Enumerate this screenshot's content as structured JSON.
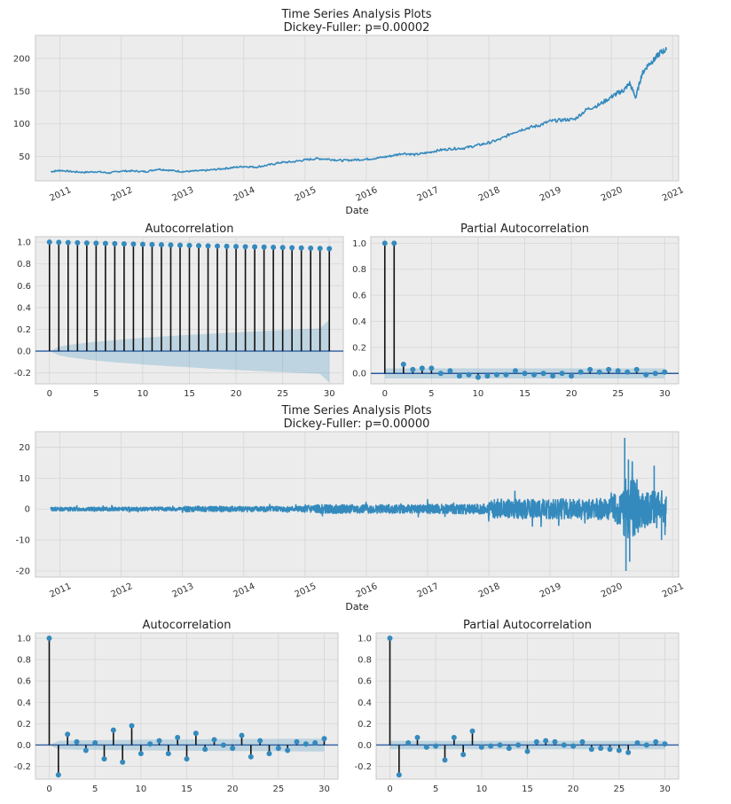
{
  "figure_1": {
    "title": "Time Series Analysis Plots",
    "subtitle": "Dickey-Fuller: p=0.00002"
  },
  "figure_2": {
    "title": "Time Series Analysis Plots",
    "subtitle": "Dickey-Fuller: p=0.00000"
  },
  "chart_data": [
    {
      "id": "ts1",
      "type": "line",
      "title": "Time Series Analysis Plots\nDickey-Fuller: p=0.00002",
      "xlabel": "Date",
      "ylabel": "",
      "x_ticks": [
        "2011",
        "2012",
        "2013",
        "2014",
        "2015",
        "2016",
        "2017",
        "2018",
        "2019",
        "2020",
        "2021"
      ],
      "y_ticks": [
        50,
        100,
        150,
        200
      ],
      "xlim": [
        2010.6,
        2021.1
      ],
      "ylim": [
        13,
        235
      ],
      "grid": true,
      "series": [
        {
          "name": "close",
          "x": [
            2010.85,
            2011.0,
            2011.2,
            2011.4,
            2011.6,
            2011.8,
            2012.0,
            2012.2,
            2012.4,
            2012.6,
            2012.8,
            2013.0,
            2013.2,
            2013.4,
            2013.6,
            2013.8,
            2014.0,
            2014.2,
            2014.4,
            2014.6,
            2014.8,
            2015.0,
            2015.2,
            2015.4,
            2015.6,
            2015.8,
            2016.0,
            2016.2,
            2016.4,
            2016.6,
            2016.8,
            2017.0,
            2017.2,
            2017.4,
            2017.6,
            2017.8,
            2018.0,
            2018.2,
            2018.4,
            2018.6,
            2018.8,
            2019.0,
            2019.2,
            2019.4,
            2019.6,
            2019.8,
            2020.0,
            2020.1,
            2020.2,
            2020.3,
            2020.4,
            2020.5,
            2020.6,
            2020.7,
            2020.8,
            2020.9
          ],
          "values": [
            27,
            29,
            27,
            26,
            27,
            25,
            28,
            28,
            27,
            31,
            29,
            27,
            28,
            29,
            31,
            33,
            35,
            34,
            37,
            41,
            42,
            45,
            47,
            46,
            44,
            45,
            46,
            48,
            51,
            55,
            53,
            56,
            60,
            62,
            63,
            67,
            71,
            77,
            87,
            93,
            97,
            104,
            106,
            107,
            122,
            129,
            141,
            147,
            151,
            162,
            140,
            176,
            190,
            198,
            209,
            213
          ]
        }
      ]
    },
    {
      "id": "acf1",
      "type": "stem",
      "title": "Autocorrelation",
      "xlabel": "",
      "ylabel": "",
      "x_ticks": [
        0,
        5,
        10,
        15,
        20,
        25,
        30
      ],
      "y_ticks": [
        -0.2,
        0.0,
        0.2,
        0.4,
        0.6,
        0.8,
        1.0
      ],
      "xlim": [
        -1.5,
        31.5
      ],
      "ylim": [
        -0.3,
        1.05
      ],
      "grid": true,
      "lags": [
        0,
        1,
        2,
        3,
        4,
        5,
        6,
        7,
        8,
        9,
        10,
        11,
        12,
        13,
        14,
        15,
        16,
        17,
        18,
        19,
        20,
        21,
        22,
        23,
        24,
        25,
        26,
        27,
        28,
        29,
        30
      ],
      "values": [
        1.0,
        0.998,
        0.996,
        0.994,
        0.992,
        0.99,
        0.988,
        0.986,
        0.984,
        0.982,
        0.98,
        0.978,
        0.976,
        0.974,
        0.972,
        0.97,
        0.968,
        0.966,
        0.964,
        0.962,
        0.96,
        0.958,
        0.956,
        0.954,
        0.952,
        0.95,
        0.948,
        0.946,
        0.944,
        0.942,
        0.94
      ],
      "conf_upper": [
        0.0,
        0.039,
        0.055,
        0.067,
        0.077,
        0.086,
        0.094,
        0.102,
        0.109,
        0.115,
        0.122,
        0.128,
        0.133,
        0.139,
        0.144,
        0.149,
        0.154,
        0.159,
        0.163,
        0.168,
        0.172,
        0.177,
        0.181,
        0.185,
        0.189,
        0.193,
        0.197,
        0.201,
        0.204,
        0.208,
        0.288
      ]
    },
    {
      "id": "pacf1",
      "type": "stem",
      "title": "Partial Autocorrelation",
      "xlabel": "",
      "ylabel": "",
      "x_ticks": [
        0,
        5,
        10,
        15,
        20,
        25,
        30
      ],
      "y_ticks": [
        0.0,
        0.2,
        0.4,
        0.6,
        0.8,
        1.0
      ],
      "xlim": [
        -1.5,
        31.5
      ],
      "ylim": [
        -0.08,
        1.05
      ],
      "grid": true,
      "lags": [
        0,
        1,
        2,
        3,
        4,
        5,
        6,
        7,
        8,
        9,
        10,
        11,
        12,
        13,
        14,
        15,
        16,
        17,
        18,
        19,
        20,
        21,
        22,
        23,
        24,
        25,
        26,
        27,
        28,
        29,
        30
      ],
      "values": [
        1.0,
        1.0,
        0.07,
        0.03,
        0.04,
        0.04,
        0.0,
        0.02,
        -0.02,
        -0.01,
        -0.03,
        -0.02,
        -0.01,
        -0.01,
        0.02,
        0.0,
        -0.01,
        0.0,
        -0.02,
        0.0,
        -0.02,
        0.01,
        0.03,
        0.01,
        0.03,
        0.02,
        0.01,
        0.03,
        -0.01,
        0.0,
        0.01
      ],
      "conf_upper": [
        0.039,
        0.039,
        0.039,
        0.039,
        0.039,
        0.039,
        0.039,
        0.039,
        0.039,
        0.039,
        0.039,
        0.039,
        0.039,
        0.039,
        0.039,
        0.039,
        0.039,
        0.039,
        0.039,
        0.039,
        0.039,
        0.039,
        0.039,
        0.039,
        0.039,
        0.039,
        0.039,
        0.039,
        0.039,
        0.039,
        0.039
      ]
    },
    {
      "id": "ts2",
      "type": "line",
      "title": "Time Series Analysis Plots\nDickey-Fuller: p=0.00000",
      "xlabel": "Date",
      "ylabel": "",
      "x_ticks": [
        "2011",
        "2012",
        "2013",
        "2014",
        "2015",
        "2016",
        "2017",
        "2018",
        "2019",
        "2020",
        "2021"
      ],
      "y_ticks": [
        -20,
        -10,
        0,
        10,
        20
      ],
      "xlim": [
        2010.6,
        2021.1
      ],
      "ylim": [
        -22,
        25
      ],
      "grid": true,
      "volatility": [
        {
          "from": 2010.85,
          "to": 2013.0,
          "amp": 0.6
        },
        {
          "from": 2013.0,
          "to": 2015.0,
          "amp": 0.9
        },
        {
          "from": 2015.0,
          "to": 2017.0,
          "amp": 1.4
        },
        {
          "from": 2017.0,
          "to": 2018.0,
          "amp": 1.6
        },
        {
          "from": 2018.0,
          "to": 2019.0,
          "amp": 3.2
        },
        {
          "from": 2019.0,
          "to": 2020.0,
          "amp": 3.4
        },
        {
          "from": 2020.0,
          "to": 2020.2,
          "amp": 5.0
        },
        {
          "from": 2020.2,
          "to": 2020.45,
          "amp": 10.0
        },
        {
          "from": 2020.45,
          "to": 2020.9,
          "amp": 6.0
        }
      ],
      "extremes": [
        {
          "x": 2020.22,
          "y": 23
        },
        {
          "x": 2020.24,
          "y": -20
        },
        {
          "x": 2020.28,
          "y": 16
        },
        {
          "x": 2020.3,
          "y": -17
        },
        {
          "x": 2020.7,
          "y": 14
        },
        {
          "x": 2020.82,
          "y": -10
        }
      ]
    },
    {
      "id": "acf2",
      "type": "stem",
      "title": "Autocorrelation",
      "xlabel": "",
      "ylabel": "",
      "x_ticks": [
        0,
        5,
        10,
        15,
        20,
        25,
        30
      ],
      "y_ticks": [
        -0.2,
        0.0,
        0.2,
        0.4,
        0.6,
        0.8,
        1.0
      ],
      "xlim": [
        -1.5,
        31.5
      ],
      "ylim": [
        -0.32,
        1.05
      ],
      "grid": true,
      "lags": [
        0,
        1,
        2,
        3,
        4,
        5,
        6,
        7,
        8,
        9,
        10,
        11,
        12,
        13,
        14,
        15,
        16,
        17,
        18,
        19,
        20,
        21,
        22,
        23,
        24,
        25,
        26,
        27,
        28,
        29,
        30
      ],
      "values": [
        1.0,
        -0.28,
        0.1,
        0.03,
        -0.05,
        0.02,
        -0.13,
        0.14,
        -0.16,
        0.18,
        -0.08,
        0.01,
        0.04,
        -0.08,
        0.07,
        -0.13,
        0.11,
        -0.04,
        0.05,
        0.0,
        -0.03,
        0.09,
        -0.11,
        0.04,
        -0.08,
        -0.03,
        -0.05,
        0.03,
        0.01,
        0.02,
        0.06
      ],
      "conf_upper": [
        0.0,
        0.039,
        0.042,
        0.044,
        0.045,
        0.045,
        0.046,
        0.047,
        0.048,
        0.049,
        0.05,
        0.051,
        0.051,
        0.052,
        0.053,
        0.053,
        0.054,
        0.054,
        0.055,
        0.055,
        0.056,
        0.056,
        0.057,
        0.057,
        0.058,
        0.058,
        0.059,
        0.059,
        0.06,
        0.06,
        0.06
      ]
    },
    {
      "id": "pacf2",
      "type": "stem",
      "title": "Partial Autocorrelation",
      "xlabel": "",
      "ylabel": "",
      "x_ticks": [
        0,
        5,
        10,
        15,
        20,
        25,
        30
      ],
      "y_ticks": [
        -0.2,
        0.0,
        0.2,
        0.4,
        0.6,
        0.8,
        1.0
      ],
      "xlim": [
        -1.5,
        31.5
      ],
      "ylim": [
        -0.32,
        1.05
      ],
      "grid": true,
      "lags": [
        0,
        1,
        2,
        3,
        4,
        5,
        6,
        7,
        8,
        9,
        10,
        11,
        12,
        13,
        14,
        15,
        16,
        17,
        18,
        19,
        20,
        21,
        22,
        23,
        24,
        25,
        26,
        27,
        28,
        29,
        30
      ],
      "values": [
        1.0,
        -0.28,
        0.02,
        0.07,
        -0.02,
        -0.01,
        -0.14,
        0.07,
        -0.09,
        0.13,
        -0.02,
        -0.01,
        0.0,
        -0.03,
        0.0,
        -0.06,
        0.03,
        0.04,
        0.03,
        0.0,
        -0.01,
        0.03,
        -0.04,
        -0.03,
        -0.04,
        -0.05,
        -0.07,
        0.02,
        0.0,
        0.03,
        0.01
      ],
      "conf_upper": [
        0.039,
        0.039,
        0.039,
        0.039,
        0.039,
        0.039,
        0.039,
        0.039,
        0.039,
        0.039,
        0.039,
        0.039,
        0.039,
        0.039,
        0.039,
        0.039,
        0.039,
        0.039,
        0.039,
        0.039,
        0.039,
        0.039,
        0.039,
        0.039,
        0.039,
        0.039,
        0.039,
        0.039,
        0.039,
        0.039,
        0.039
      ]
    }
  ]
}
